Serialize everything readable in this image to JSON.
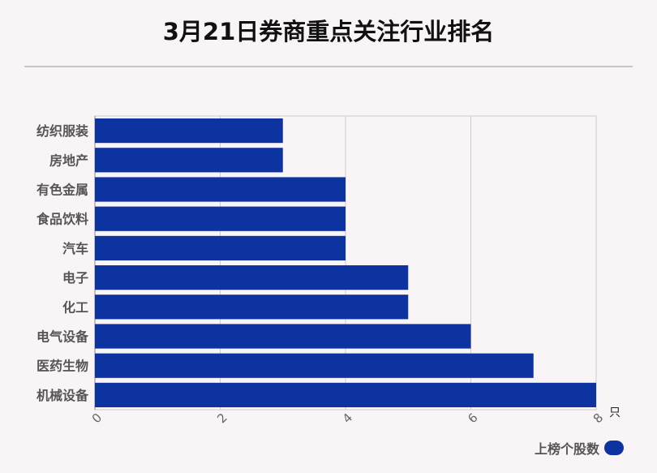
{
  "title": "3月21日券商重点关注行业排名",
  "legend": {
    "label": "上榜个股数",
    "color": "#0d33a0"
  },
  "chart_data": {
    "type": "bar",
    "orientation": "horizontal",
    "title": "3月21日券商重点关注行业排名",
    "x_unit": "只",
    "xlim": [
      0,
      8
    ],
    "x_ticks": [
      0,
      2,
      4,
      6,
      8
    ],
    "grid": true,
    "legend_position": "bottom-right",
    "categories": [
      "纺织服装",
      "房地产",
      "有色金属",
      "食品饮料",
      "汽车",
      "电子",
      "化工",
      "电气设备",
      "医药生物",
      "机械设备"
    ],
    "series": [
      {
        "name": "上榜个股数",
        "color": "#0d33a0",
        "values": [
          3,
          3,
          4,
          4,
          4,
          5,
          5,
          6,
          7,
          8
        ]
      }
    ]
  }
}
